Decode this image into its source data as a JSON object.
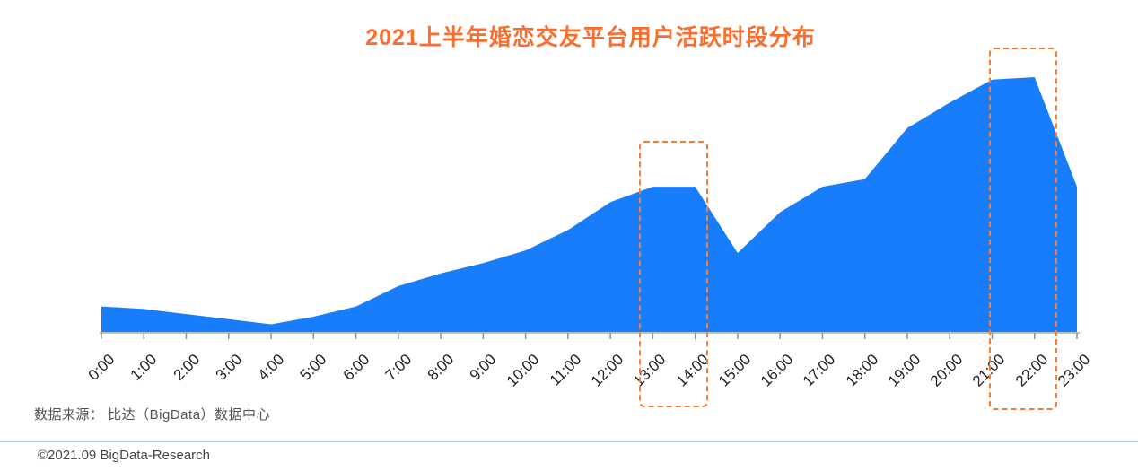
{
  "chart": {
    "title": "2021上半年婚恋交友平台用户活跃时段分布",
    "title_color": "#fb6d2d"
  },
  "chart_data": {
    "type": "area",
    "title": "2021上半年婚恋交友平台用户活跃时段分布",
    "categories": [
      "0:00",
      "1:00",
      "2:00",
      "3:00",
      "4:00",
      "5:00",
      "6:00",
      "7:00",
      "8:00",
      "9:00",
      "10:00",
      "11:00",
      "12:00",
      "13:00",
      "14:00",
      "15:00",
      "16:00",
      "17:00",
      "18:00",
      "19:00",
      "20:00",
      "21:00",
      "22:00",
      "23:00"
    ],
    "values": [
      10,
      9,
      7,
      5,
      3,
      6,
      10,
      18,
      23,
      27,
      32,
      40,
      51,
      57,
      57,
      31,
      47,
      57,
      60,
      80,
      90,
      99,
      100,
      57
    ],
    "unit": "relative activity index (no y-axis shown in source, max = 100)",
    "xlabel": "",
    "ylabel": "",
    "ylim": [
      0,
      105
    ],
    "grid": false,
    "legend": false,
    "area_color": "#177dfb",
    "axis_color": "#a9a9a9",
    "tick_color": "#8f8f8f",
    "highlight_color": "#f97c33",
    "highlights": [
      {
        "from": "13:00",
        "to": "14:00",
        "style": "dashed-orange-box"
      },
      {
        "from": "21:00",
        "to": "22:00",
        "style": "dashed-orange-box"
      }
    ]
  },
  "footer": {
    "source": "数据来源： 比达（BigData）数据中心",
    "copyright": "©2021.09 BigData-Research",
    "divider_color": "#a5c8e9"
  }
}
